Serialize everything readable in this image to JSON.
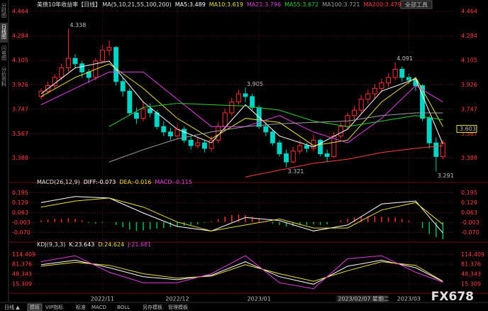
{
  "ui": {
    "sidebar": [
      "分时图",
      "日线图",
      "闪电图",
      "分价资料"
    ],
    "active_tab": "日线图",
    "tools_button": "全部工具",
    "toolbar": [
      "日线 ▲",
      "模板",
      "VIP指标",
      "标准",
      "MACD",
      "BOLL",
      "另存模板",
      "管理模板"
    ],
    "active_tool": "模板",
    "watermark": "FX678"
  },
  "chart_data": [
    {
      "type": "candlestick",
      "title": "美债10年收益率【日线】",
      "subtitle": "MA(5,10,21,55,100,200)",
      "up_color": "#ff3232",
      "down_color": "#00d4c4",
      "candles": [
        [
          3.84,
          3.9,
          3.82,
          3.88
        ],
        [
          3.88,
          3.95,
          3.86,
          3.92
        ],
        [
          3.92,
          4.0,
          3.9,
          3.98
        ],
        [
          3.98,
          4.08,
          3.96,
          4.05
        ],
        [
          4.05,
          4.338,
          4.02,
          4.12
        ],
        [
          4.12,
          4.15,
          4.05,
          4.08
        ],
        [
          4.08,
          4.1,
          3.98,
          4.02
        ],
        [
          4.02,
          4.04,
          3.94,
          3.98
        ],
        [
          3.98,
          4.12,
          3.96,
          4.1
        ],
        [
          4.1,
          4.22,
          4.08,
          4.18
        ],
        [
          4.18,
          4.25,
          4.14,
          4.2
        ],
        [
          4.2,
          4.21,
          3.92,
          3.95
        ],
        [
          3.95,
          3.98,
          3.84,
          3.88
        ],
        [
          3.88,
          3.9,
          3.7,
          3.72
        ],
        [
          3.72,
          3.76,
          3.64,
          3.68
        ],
        [
          3.68,
          3.8,
          3.66,
          3.75
        ],
        [
          3.75,
          3.79,
          3.69,
          3.72
        ],
        [
          3.72,
          3.74,
          3.6,
          3.62
        ],
        [
          3.62,
          3.66,
          3.55,
          3.58
        ],
        [
          3.58,
          3.61,
          3.52,
          3.55
        ],
        [
          3.55,
          3.64,
          3.53,
          3.6
        ],
        [
          3.6,
          3.62,
          3.5,
          3.52
        ],
        [
          3.52,
          3.55,
          3.45,
          3.48
        ],
        [
          3.48,
          3.54,
          3.46,
          3.5
        ],
        [
          3.5,
          3.52,
          3.43,
          3.46
        ],
        [
          3.46,
          3.55,
          3.44,
          3.52
        ],
        [
          3.52,
          3.65,
          3.5,
          3.62
        ],
        [
          3.62,
          3.75,
          3.6,
          3.72
        ],
        [
          3.72,
          3.83,
          3.7,
          3.8
        ],
        [
          3.8,
          3.89,
          3.78,
          3.86
        ],
        [
          3.86,
          3.905,
          3.8,
          3.84
        ],
        [
          3.84,
          3.86,
          3.74,
          3.76
        ],
        [
          3.76,
          3.78,
          3.6,
          3.62
        ],
        [
          3.62,
          3.65,
          3.55,
          3.58
        ],
        [
          3.58,
          3.6,
          3.48,
          3.5
        ],
        [
          3.5,
          3.52,
          3.4,
          3.42
        ],
        [
          3.42,
          3.45,
          3.321,
          3.36
        ],
        [
          3.36,
          3.47,
          3.35,
          3.44
        ],
        [
          3.44,
          3.52,
          3.42,
          3.48
        ],
        [
          3.48,
          3.5,
          3.43,
          3.46
        ],
        [
          3.46,
          3.56,
          3.44,
          3.52
        ],
        [
          3.52,
          3.53,
          3.4,
          3.42
        ],
        [
          3.42,
          3.45,
          3.36,
          3.4
        ],
        [
          3.4,
          3.58,
          3.39,
          3.55
        ],
        [
          3.55,
          3.65,
          3.53,
          3.62
        ],
        [
          3.62,
          3.72,
          3.6,
          3.7
        ],
        [
          3.7,
          3.77,
          3.67,
          3.74
        ],
        [
          3.74,
          3.85,
          3.72,
          3.82
        ],
        [
          3.82,
          3.89,
          3.79,
          3.86
        ],
        [
          3.86,
          3.93,
          3.83,
          3.9
        ],
        [
          3.9,
          3.97,
          3.87,
          3.94
        ],
        [
          3.94,
          4.01,
          3.91,
          3.98
        ],
        [
          3.98,
          4.091,
          3.96,
          4.04
        ],
        [
          4.04,
          4.06,
          3.95,
          3.98
        ],
        [
          3.98,
          4.01,
          3.93,
          3.96
        ],
        [
          3.96,
          3.98,
          3.88,
          3.92
        ],
        [
          3.92,
          3.93,
          3.66,
          3.68
        ],
        [
          3.68,
          3.7,
          3.46,
          3.5
        ],
        [
          3.5,
          3.54,
          3.291,
          3.4
        ],
        [
          3.4,
          3.52,
          3.38,
          3.5
        ]
      ],
      "x": [
        0,
        5,
        10,
        15,
        20,
        25,
        30,
        35,
        40,
        45,
        50,
        55,
        59
      ],
      "series": [
        {
          "name": "MA5:3.489",
          "color": "#ffffff",
          "values": [
            3.86,
            4.05,
            4.1,
            3.8,
            3.6,
            3.5,
            3.78,
            3.55,
            3.47,
            3.6,
            3.88,
            3.97,
            3.49
          ]
        },
        {
          "name": "MA10:3.619",
          "color": "#e8e040",
          "values": [
            3.84,
            3.98,
            4.08,
            3.9,
            3.68,
            3.53,
            3.68,
            3.65,
            3.48,
            3.52,
            3.8,
            3.98,
            3.62
          ]
        },
        {
          "name": "MA21:3.796",
          "color": "#e040e0",
          "values": [
            3.78,
            3.9,
            4.02,
            4.02,
            3.82,
            3.62,
            3.62,
            3.7,
            3.58,
            3.5,
            3.68,
            3.92,
            3.8
          ]
        },
        {
          "name": "MA55:3.672",
          "color": "#30d030",
          "values": [
            null,
            null,
            3.62,
            3.76,
            3.79,
            3.78,
            3.77,
            3.74,
            3.66,
            3.62,
            3.66,
            3.7,
            3.67
          ]
        },
        {
          "name": "MA100:3.721",
          "color": "#a0a0a0",
          "values": [
            null,
            null,
            3.36,
            3.45,
            3.53,
            3.58,
            3.62,
            3.64,
            3.65,
            3.66,
            3.7,
            3.72,
            3.72
          ]
        },
        {
          "name": "MA200:3.479",
          "color": "#ff4040",
          "values": [
            null,
            null,
            null,
            null,
            null,
            null,
            3.25,
            3.3,
            3.35,
            3.38,
            3.43,
            3.46,
            3.48
          ]
        }
      ],
      "annotations": [
        {
          "x": 4,
          "value": 4.338
        },
        {
          "x": 30,
          "value": 3.905
        },
        {
          "x": 36,
          "value": 3.321
        },
        {
          "x": 52,
          "value": 4.091
        },
        {
          "x": 58,
          "value": 3.291
        }
      ],
      "marker": 3.603,
      "ylim": [
        3.22,
        4.475
      ],
      "yticks": [
        3.388,
        3.567,
        3.747,
        3.926,
        4.105,
        4.284,
        4.464
      ],
      "xticks": [
        {
          "value": 9,
          "label": "2022/11"
        },
        {
          "value": 20,
          "label": "2022/12"
        },
        {
          "value": 32,
          "label": "2023/01"
        },
        {
          "value": 54,
          "label": "2023/03"
        }
      ],
      "highlight": {
        "value": 44,
        "label": "2023/02/07 星期二"
      },
      "grid": true
    },
    {
      "type": "macd",
      "title": "MACD(26,12,9)",
      "up_color": "#ff3232",
      "down_color": "#00c060",
      "histogram": {
        "name": "MACD:-0.115",
        "color": "#e040e0",
        "values": [
          0.01,
          0.015,
          0.02,
          0.02,
          0.025,
          0.02,
          0.01,
          -0.005,
          -0.01,
          -0.005,
          0.0,
          -0.02,
          -0.035,
          -0.05,
          -0.06,
          -0.055,
          -0.05,
          -0.045,
          -0.04,
          -0.035,
          -0.03,
          -0.025,
          -0.02,
          -0.015,
          -0.005,
          0.005,
          0.02,
          0.035,
          0.045,
          0.05,
          0.045,
          0.035,
          0.02,
          0.005,
          -0.01,
          -0.02,
          -0.03,
          -0.025,
          -0.02,
          -0.02,
          -0.015,
          -0.02,
          -0.015,
          0.0,
          0.01,
          0.02,
          0.03,
          0.035,
          0.04,
          0.04,
          0.035,
          0.03,
          0.03,
          0.02,
          0.01,
          0.0,
          -0.04,
          -0.08,
          -0.1,
          -0.115
        ]
      },
      "x": [
        0,
        5,
        10,
        15,
        20,
        25,
        30,
        35,
        40,
        45,
        50,
        55,
        59
      ],
      "series": [
        {
          "name": "DIFF:-0.073",
          "color": "#ffffff",
          "values": [
            0.13,
            0.17,
            0.16,
            0.06,
            -0.03,
            -0.06,
            0.03,
            0.01,
            -0.06,
            -0.02,
            0.12,
            0.14,
            -0.073
          ]
        },
        {
          "name": "DEA:-0.016",
          "color": "#e8e040",
          "values": [
            0.1,
            0.14,
            0.16,
            0.1,
            0.0,
            -0.06,
            -0.02,
            0.02,
            -0.04,
            -0.04,
            0.08,
            0.13,
            -0.016
          ]
        }
      ],
      "ylim": [
        -0.12,
        0.24
      ],
      "yticks": [
        {
          "value": -0.07,
          "label": "-0.070"
        },
        -0.003,
        0.063,
        0.129,
        0.195
      ],
      "grid": true
    },
    {
      "type": "line",
      "title": "KDJ(9,3,3)",
      "x": [
        0,
        5,
        10,
        15,
        20,
        25,
        30,
        35,
        40,
        45,
        50,
        55,
        59
      ],
      "series": [
        {
          "name": "K:23.643",
          "color": "#ffffff",
          "values": [
            80,
            95,
            70,
            40,
            30,
            45,
            90,
            40,
            15,
            75,
            95,
            70,
            23.643
          ]
        },
        {
          "name": "D:24.624",
          "color": "#e8e040",
          "values": [
            75,
            88,
            78,
            50,
            35,
            42,
            80,
            50,
            25,
            60,
            90,
            78,
            24.624
          ]
        },
        {
          "name": "J:21.681",
          "color": "#e040e0",
          "values": [
            90,
            110,
            55,
            20,
            20,
            50,
            110,
            20,
            0,
            100,
            110,
            55,
            21.681
          ]
        }
      ],
      "ylim": [
        -8,
        134
      ],
      "yticks": [
        15.309,
        48.343,
        81.376,
        114.409
      ],
      "grid": true
    }
  ]
}
